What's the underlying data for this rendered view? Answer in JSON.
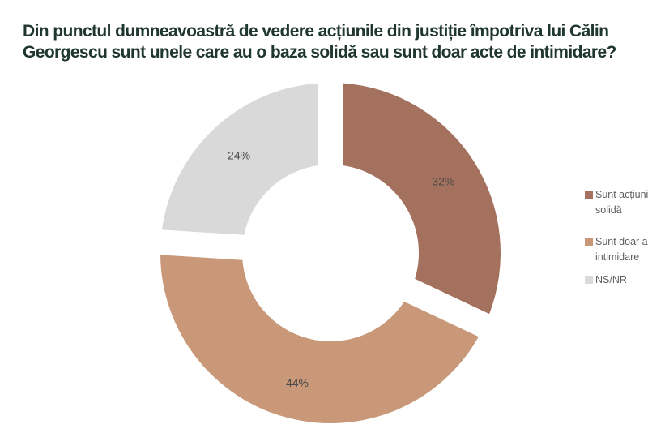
{
  "page": {
    "background": "#ffffff"
  },
  "title": {
    "lines": [
      "Din punctul dumneavoastră de vedere acțiunile din justiție împotriva lui Călin",
      "Georgescu sunt unele care au o baza solidă sau sunt doar acte de intimidare?"
    ],
    "color": "#20372f"
  },
  "chart_data": {
    "type": "pie",
    "subtype": "donut",
    "start_angle_deg": 0,
    "direction": "clockwise",
    "slices": [
      {
        "name": "Sunt acțiuni solidă",
        "value": 32,
        "data_label": "32%",
        "color": "#a5715f"
      },
      {
        "name": "Sunt doar a intimidare",
        "value": 44,
        "data_label": "44%",
        "color": "#c89878"
      },
      {
        "name": "NS/NR",
        "value": 24,
        "data_label": "24%",
        "color": "#d9d9d9"
      }
    ],
    "data_label_color": "#4a4a4a",
    "legend_position": "right",
    "legend_clipped_by_viewport": true
  },
  "legend": {
    "text_color": "#5f5f5f",
    "items": [
      {
        "swatch_color": "#a5715f",
        "lines": [
          "Sunt acțiuni",
          "solidă"
        ]
      },
      {
        "swatch_color": "#c89878",
        "lines": [
          "Sunt doar a",
          "intimidare"
        ]
      },
      {
        "swatch_color": "#d9d9d9",
        "lines": [
          "NS/NR"
        ]
      }
    ]
  }
}
